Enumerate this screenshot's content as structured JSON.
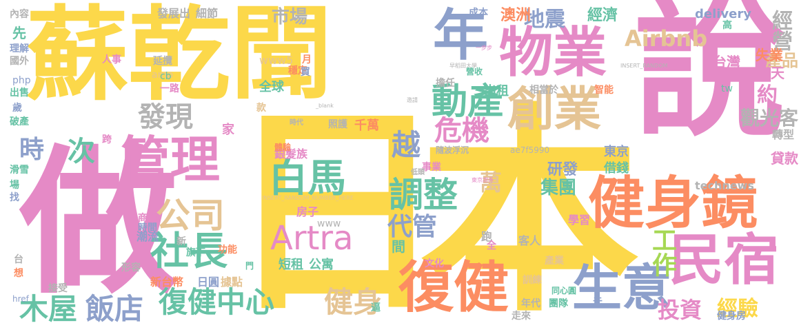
{
  "colors": {
    "yellow": "#fcd84a",
    "pink": "#e58ac6",
    "blue": "#8da0cb",
    "orange": "#fc8d62",
    "green": "#66c2a5",
    "tan": "#e5c494",
    "lime": "#a6d854",
    "gray": "#b3b3b3"
  },
  "words": [
    {
      "text": "日本",
      "color": "yellow"
    },
    {
      "text": "說",
      "color": "pink"
    },
    {
      "text": "做",
      "color": "pink"
    },
    {
      "text": "蘇乾",
      "color": "yellow"
    },
    {
      "text": "聞",
      "color": "yellow"
    },
    {
      "text": "健身鏡",
      "color": "orange"
    },
    {
      "text": "復健",
      "color": "orange"
    },
    {
      "text": "物業",
      "color": "pink"
    },
    {
      "text": "年",
      "color": "blue"
    },
    {
      "text": "管理",
      "color": "pink"
    },
    {
      "text": "創業",
      "color": "tan"
    },
    {
      "text": "民宿",
      "color": "pink"
    },
    {
      "text": "生意",
      "color": "blue"
    },
    {
      "text": "Artra",
      "color": "pink"
    },
    {
      "text": "白馬",
      "color": "green"
    },
    {
      "text": "復健中心",
      "color": "green"
    },
    {
      "text": "社長",
      "color": "green"
    },
    {
      "text": "公司",
      "color": "tan"
    },
    {
      "text": "動產",
      "color": "green"
    },
    {
      "text": "調整",
      "color": "green"
    },
    {
      "text": "危機",
      "color": "pink"
    },
    {
      "text": "木屋",
      "color": "green"
    },
    {
      "text": "飯店",
      "color": "blue"
    },
    {
      "text": "健身",
      "color": "tan"
    },
    {
      "text": "發現",
      "color": "gray"
    },
    {
      "text": "Airbnb",
      "color": "tan"
    },
    {
      "text": "地震",
      "color": "blue"
    },
    {
      "text": "越",
      "color": "blue"
    },
    {
      "text": "代管",
      "color": "blue"
    },
    {
      "text": "工作",
      "color": "lime"
    },
    {
      "text": "投資",
      "color": "pink"
    },
    {
      "text": "次",
      "color": "green"
    },
    {
      "text": "時",
      "color": "blue"
    },
    {
      "text": "經營",
      "color": "gray"
    },
    {
      "text": "市場",
      "color": "gray"
    },
    {
      "text": "觀光客",
      "color": "gray"
    },
    {
      "text": "約",
      "color": "pink"
    },
    {
      "text": "萬",
      "color": "tan"
    },
    {
      "text": "經驗",
      "color": "yellow"
    },
    {
      "text": "產品",
      "color": "tan"
    },
    {
      "text": "集團",
      "color": "green"
    },
    {
      "text": "研發",
      "color": "blue"
    },
    {
      "text": "短租",
      "color": "green"
    },
    {
      "text": "公寓",
      "color": "green"
    },
    {
      "text": "銀髮族",
      "color": "pink"
    },
    {
      "text": "房子",
      "color": "pink"
    },
    {
      "text": "經濟",
      "color": "green"
    },
    {
      "text": "澳洲",
      "color": "orange"
    },
    {
      "text": "成本",
      "color": "blue"
    },
    {
      "text": "失業",
      "color": "orange"
    },
    {
      "text": "聊天",
      "color": "pink"
    },
    {
      "text": "台灣",
      "color": "pink"
    },
    {
      "text": "貸款",
      "color": "pink"
    },
    {
      "text": "delivery",
      "color": "blue"
    },
    {
      "text": "technews",
      "color": "gray"
    },
    {
      "text": "全球",
      "color": "green"
    },
    {
      "text": "千萬",
      "color": "orange"
    },
    {
      "text": "出租",
      "color": "green"
    },
    {
      "text": "東京",
      "color": "blue"
    },
    {
      "text": "借錢",
      "color": "green"
    },
    {
      "text": "健身房",
      "color": "blue"
    },
    {
      "text": "發展出",
      "color": "gray"
    },
    {
      "text": "細節",
      "color": "gray"
    },
    {
      "text": "先",
      "color": "green"
    },
    {
      "text": "家",
      "color": "pink"
    },
    {
      "text": "新台幣",
      "color": "orange"
    },
    {
      "text": "日圓",
      "color": "blue"
    },
    {
      "text": "據點",
      "color": "tan"
    },
    {
      "text": "跑",
      "color": "gray"
    },
    {
      "text": "客人",
      "color": "gray"
    },
    {
      "text": "間",
      "color": "green"
    },
    {
      "text": "www",
      "color": "gray"
    },
    {
      "text": "年代",
      "color": "gray"
    },
    {
      "text": "走來",
      "color": "gray"
    },
    {
      "text": "團隊",
      "color": "green"
    },
    {
      "text": "訓練",
      "color": "tan"
    },
    {
      "text": "同心圓",
      "color": "green"
    },
    {
      "text": "元",
      "color": "blue"
    },
    {
      "text": "學習",
      "color": "pink"
    },
    {
      "text": "轉型",
      "color": "gray"
    },
    {
      "text": "接受",
      "color": "gray"
    },
    {
      "text": "潮流",
      "color": "blue"
    },
    {
      "text": "商辦",
      "color": "pink"
    },
    {
      "text": "時間",
      "color": "blue"
    },
    {
      "text": "旗下",
      "color": "green"
    },
    {
      "text": "功能",
      "color": "orange"
    },
    {
      "text": "形容",
      "color": "gray"
    },
    {
      "text": "智能",
      "color": "orange"
    },
    {
      "text": "www5",
      "color": "tan"
    },
    {
      "text": "amp",
      "color": "tan"
    },
    {
      "text": "延攬",
      "color": "gray"
    },
    {
      "text": "人事",
      "color": "pink"
    },
    {
      "text": "php",
      "color": "blue"
    },
    {
      "text": "cb",
      "color": "green"
    },
    {
      "text": "一路",
      "color": "pink"
    },
    {
      "text": "穩定",
      "color": "orange"
    },
    {
      "text": "買",
      "color": "blue"
    },
    {
      "text": "擔任",
      "color": "gray"
    },
    {
      "text": "營收",
      "color": "green"
    },
    {
      "text": "相當於",
      "color": "gray"
    },
    {
      "text": "理解",
      "color": "blue"
    },
    {
      "text": "國外",
      "color": "gray"
    },
    {
      "text": "出售",
      "color": "green"
    },
    {
      "text": "歲",
      "color": "blue"
    },
    {
      "text": "破產",
      "color": "green"
    },
    {
      "text": "滑雪",
      "color": "green"
    },
    {
      "text": "場",
      "color": "green"
    },
    {
      "text": "找",
      "color": "blue"
    },
    {
      "text": "事業",
      "color": "pink"
    },
    {
      "text": "體驗",
      "color": "orange"
    },
    {
      "text": "產業",
      "color": "tan"
    },
    {
      "text": "文化",
      "color": "pink"
    },
    {
      "text": "內容",
      "color": "gray"
    },
    {
      "text": "照護",
      "color": "gray"
    },
    {
      "text": "隨波浮沉",
      "color": "gray"
    },
    {
      "text": "tw",
      "color": "green"
    },
    {
      "text": "高",
      "color": "green"
    },
    {
      "text": "跨",
      "color": "pink"
    },
    {
      "text": "ae7f5990",
      "color": "gray"
    },
    {
      "text": "INSERT_RANDOM_NUMBER_HERE",
      "color": "tan"
    },
    {
      "text": "INSERT_RANDOM",
      "color": "gray"
    },
    {
      "text": "月",
      "color": "orange"
    },
    {
      "text": "款",
      "color": "tan"
    },
    {
      "text": "全",
      "color": "pink"
    },
    {
      "text": "新",
      "color": "gray"
    },
    {
      "text": "台",
      "color": "gray"
    },
    {
      "text": "想",
      "color": "orange"
    },
    {
      "text": "門",
      "color": "green"
    },
    {
      "text": "逼",
      "color": "green"
    },
    {
      "text": "低頭",
      "color": "gray"
    },
    {
      "text": "時代",
      "color": "gray"
    },
    {
      "text": "href",
      "color": "blue"
    },
    {
      "text": "一步步",
      "color": "pink"
    },
    {
      "text": "早稻田大學",
      "color": "gray"
    },
    {
      "text": "東京證券",
      "color": "pink"
    },
    {
      "text": "_blank",
      "color": "gray"
    },
    {
      "text": "邀請",
      "color": "gray"
    }
  ]
}
